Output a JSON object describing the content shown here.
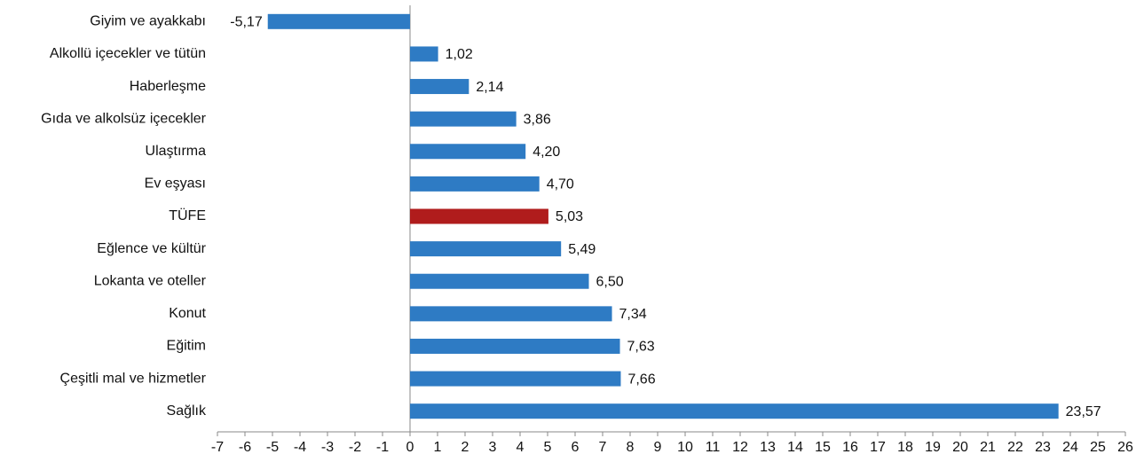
{
  "chart_data": {
    "type": "hbar",
    "categories": [
      "Giyim ve ayakkabı",
      "Alkollü içecekler ve tütün",
      "Haberleşme",
      "Gıda ve alkolsüz içecekler",
      "Ulaştırma",
      "Ev eşyası",
      "TÜFE",
      "Eğlence ve kültür",
      "Lokanta ve oteller",
      "Konut",
      "Eğitim",
      "Çeşitli mal ve hizmetler",
      "Sağlık"
    ],
    "values": [
      -5.17,
      1.02,
      2.14,
      3.86,
      4.2,
      4.7,
      5.03,
      5.49,
      6.5,
      7.34,
      7.63,
      7.66,
      23.57
    ],
    "value_labels": [
      "-5,17",
      "1,02",
      "2,14",
      "3,86",
      "4,20",
      "4,70",
      "5,03",
      "5,49",
      "6,50",
      "7,34",
      "7,63",
      "7,66",
      "23,57"
    ],
    "colors": [
      "#2e7bc4",
      "#2e7bc4",
      "#2e7bc4",
      "#2e7bc4",
      "#2e7bc4",
      "#2e7bc4",
      "#b01c1c",
      "#2e7bc4",
      "#2e7bc4",
      "#2e7bc4",
      "#2e7bc4",
      "#2e7bc4",
      "#2e7bc4"
    ],
    "xlim": [
      -7,
      26
    ],
    "xticks": [
      -7,
      -6,
      -5,
      -4,
      -3,
      -2,
      -1,
      0,
      1,
      2,
      3,
      4,
      5,
      6,
      7,
      8,
      9,
      10,
      11,
      12,
      13,
      14,
      15,
      16,
      17,
      18,
      19,
      20,
      21,
      22,
      23,
      24,
      25,
      26
    ]
  }
}
